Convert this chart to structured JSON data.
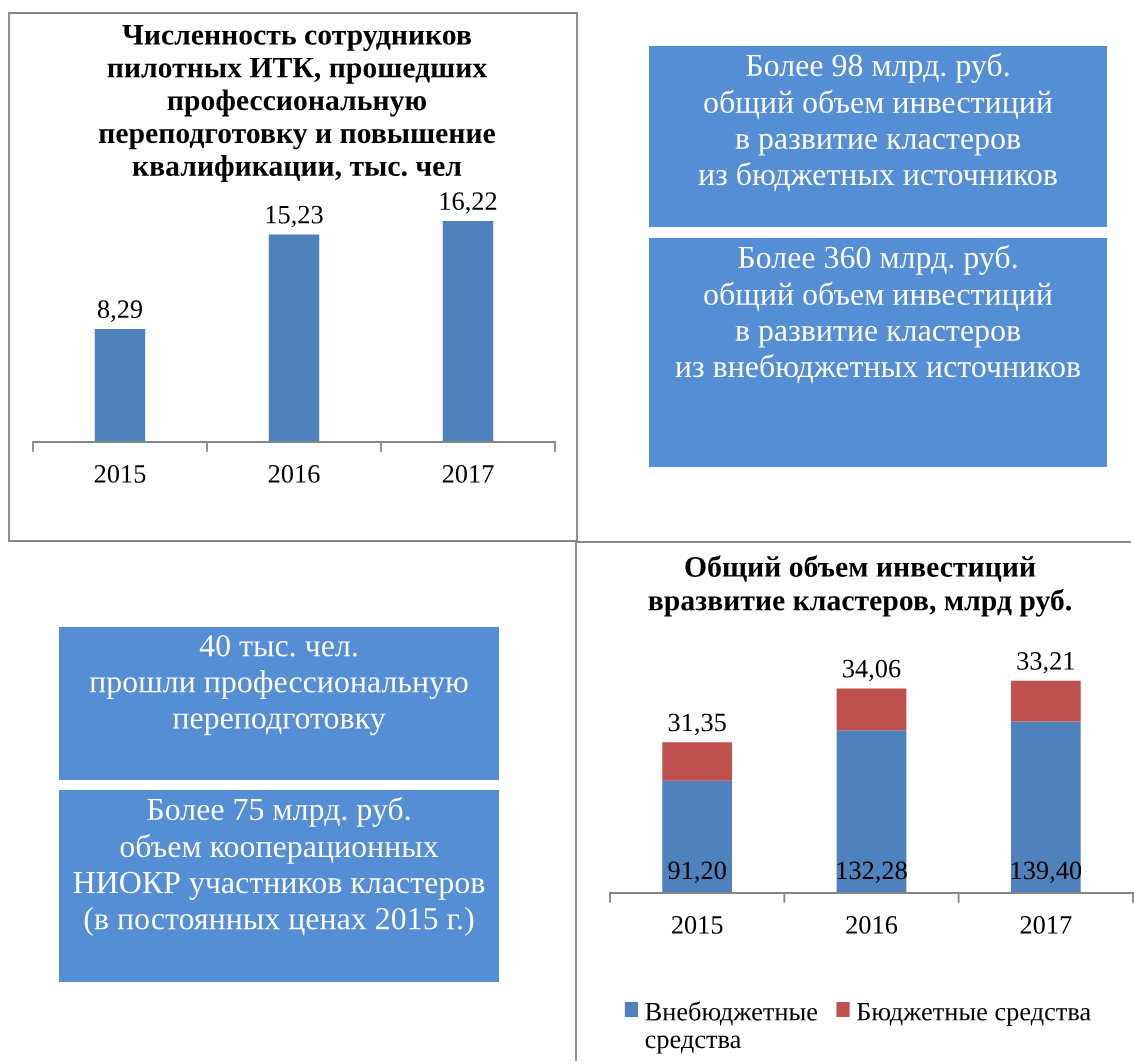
{
  "chart_data": [
    {
      "type": "bar",
      "title": "Численность сотрудников\nпилотных ИТК, прошедших\nпрофессиональную\nпереподготовку и повышение\nквалификации, тыс. чел",
      "categories": [
        "2015",
        "2016",
        "2017"
      ],
      "values": [
        8.29,
        15.23,
        16.22
      ],
      "value_labels": [
        "8,29",
        "15,23",
        "16,22"
      ],
      "color": "#4f81bd"
    },
    {
      "type": "other",
      "annotations": [
        "Более 98 млрд. руб.\nобщий объем инвестиций\nв развитие кластеров\nиз бюджетных источников",
        "Более 360 млрд. руб.\nобщий объем инвестиций\nв развитие кластеров\nиз внебюджетных источников"
      ],
      "colors": [
        "#558ed5",
        "#558ed5"
      ]
    },
    {
      "type": "other",
      "annotations": [
        "40 тыс. чел.\nпрошли профессиональную\nпереподготовку",
        "Более 75 млрд. руб.\nобъем кооперационных\nНИОКР участников кластеров\n(в постоянных ценах 2015 г.)"
      ],
      "colors": [
        "#558ed5",
        "#558ed5"
      ]
    },
    {
      "type": "bar",
      "stacked": true,
      "title": "Общий объем инвестиций\nвразвитие кластеров, млрд руб.",
      "categories": [
        "2015",
        "2016",
        "2017"
      ],
      "series": [
        {
          "name": "Внебюджетные средства",
          "color": "#4f81bd",
          "values": [
            91.2,
            132.28,
            139.4
          ],
          "value_labels": [
            "91,20",
            "132,28",
            "139,40"
          ]
        },
        {
          "name": "Бюджетные средства",
          "color": "#c0504d",
          "values": [
            31.35,
            34.06,
            33.21
          ],
          "value_labels": [
            "31,35",
            "34,06",
            "33,21"
          ]
        }
      ],
      "legend": "bottom"
    }
  ]
}
